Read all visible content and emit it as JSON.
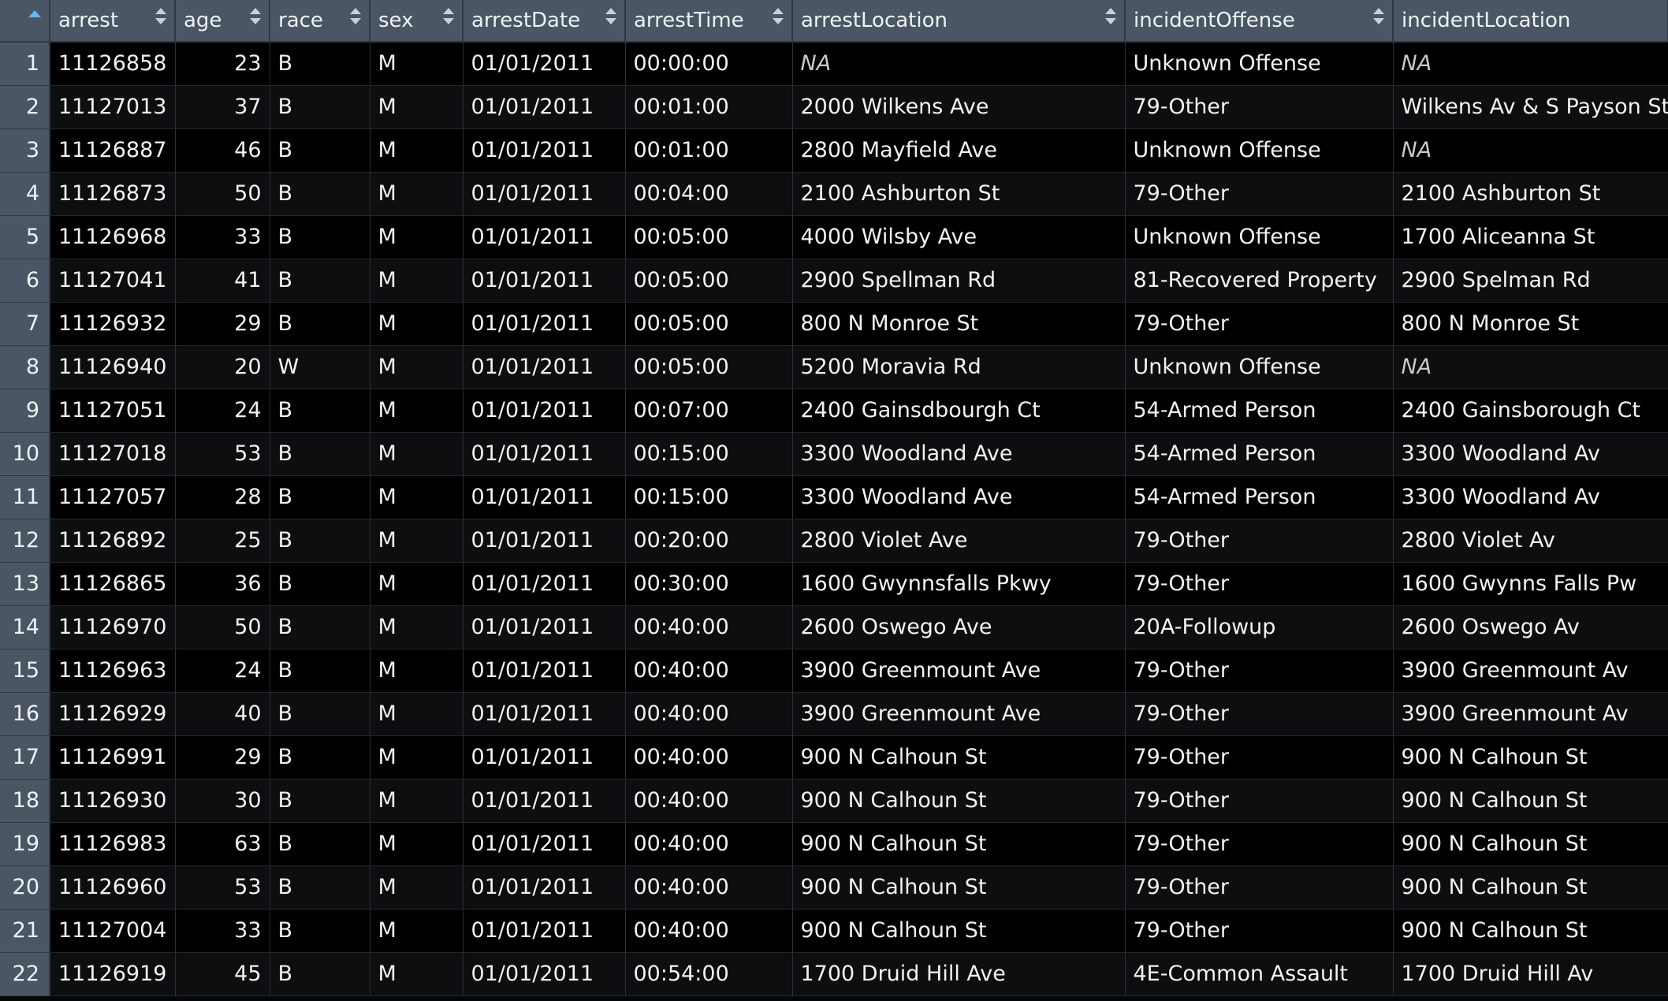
{
  "columns": [
    {
      "key": "arrest",
      "label": "arrest"
    },
    {
      "key": "age",
      "label": "age"
    },
    {
      "key": "race",
      "label": "race"
    },
    {
      "key": "sex",
      "label": "sex"
    },
    {
      "key": "arrestDate",
      "label": "arrestDate"
    },
    {
      "key": "arrestTime",
      "label": "arrestTime"
    },
    {
      "key": "arrestLocation",
      "label": "arrestLocation"
    },
    {
      "key": "incidentOffense",
      "label": "incidentOffense"
    },
    {
      "key": "incidentLocation",
      "label": "incidentLocation"
    }
  ],
  "rows": [
    {
      "n": "1",
      "arrest": "11126858",
      "age": "23",
      "race": "B",
      "sex": "M",
      "arrestDate": "01/01/2011",
      "arrestTime": "00:00:00",
      "arrestLocation": "NA",
      "incidentOffense": "Unknown Offense",
      "incidentLocation": "NA"
    },
    {
      "n": "2",
      "arrest": "11127013",
      "age": "37",
      "race": "B",
      "sex": "M",
      "arrestDate": "01/01/2011",
      "arrestTime": "00:01:00",
      "arrestLocation": "2000 Wilkens Ave",
      "incidentOffense": "79-Other",
      "incidentLocation": "Wilkens Av & S Payson St"
    },
    {
      "n": "3",
      "arrest": "11126887",
      "age": "46",
      "race": "B",
      "sex": "M",
      "arrestDate": "01/01/2011",
      "arrestTime": "00:01:00",
      "arrestLocation": "2800 Mayfield Ave",
      "incidentOffense": "Unknown Offense",
      "incidentLocation": "NA"
    },
    {
      "n": "4",
      "arrest": "11126873",
      "age": "50",
      "race": "B",
      "sex": "M",
      "arrestDate": "01/01/2011",
      "arrestTime": "00:04:00",
      "arrestLocation": "2100 Ashburton St",
      "incidentOffense": "79-Other",
      "incidentLocation": "2100 Ashburton St"
    },
    {
      "n": "5",
      "arrest": "11126968",
      "age": "33",
      "race": "B",
      "sex": "M",
      "arrestDate": "01/01/2011",
      "arrestTime": "00:05:00",
      "arrestLocation": "4000 Wilsby Ave",
      "incidentOffense": "Unknown Offense",
      "incidentLocation": "1700 Aliceanna St"
    },
    {
      "n": "6",
      "arrest": "11127041",
      "age": "41",
      "race": "B",
      "sex": "M",
      "arrestDate": "01/01/2011",
      "arrestTime": "00:05:00",
      "arrestLocation": "2900 Spellman Rd",
      "incidentOffense": "81-Recovered Property",
      "incidentLocation": "2900 Spelman Rd"
    },
    {
      "n": "7",
      "arrest": "11126932",
      "age": "29",
      "race": "B",
      "sex": "M",
      "arrestDate": "01/01/2011",
      "arrestTime": "00:05:00",
      "arrestLocation": "800 N Monroe St",
      "incidentOffense": "79-Other",
      "incidentLocation": "800 N Monroe St"
    },
    {
      "n": "8",
      "arrest": "11126940",
      "age": "20",
      "race": "W",
      "sex": "M",
      "arrestDate": "01/01/2011",
      "arrestTime": "00:05:00",
      "arrestLocation": "5200 Moravia Rd",
      "incidentOffense": "Unknown Offense",
      "incidentLocation": "NA"
    },
    {
      "n": "9",
      "arrest": "11127051",
      "age": "24",
      "race": "B",
      "sex": "M",
      "arrestDate": "01/01/2011",
      "arrestTime": "00:07:00",
      "arrestLocation": "2400 Gainsdbourgh Ct",
      "incidentOffense": "54-Armed Person",
      "incidentLocation": "2400 Gainsborough Ct"
    },
    {
      "n": "10",
      "arrest": "11127018",
      "age": "53",
      "race": "B",
      "sex": "M",
      "arrestDate": "01/01/2011",
      "arrestTime": "00:15:00",
      "arrestLocation": "3300 Woodland Ave",
      "incidentOffense": "54-Armed Person",
      "incidentLocation": "3300 Woodland Av"
    },
    {
      "n": "11",
      "arrest": "11127057",
      "age": "28",
      "race": "B",
      "sex": "M",
      "arrestDate": "01/01/2011",
      "arrestTime": "00:15:00",
      "arrestLocation": "3300 Woodland Ave",
      "incidentOffense": "54-Armed Person",
      "incidentLocation": "3300 Woodland Av"
    },
    {
      "n": "12",
      "arrest": "11126892",
      "age": "25",
      "race": "B",
      "sex": "M",
      "arrestDate": "01/01/2011",
      "arrestTime": "00:20:00",
      "arrestLocation": "2800 Violet Ave",
      "incidentOffense": "79-Other",
      "incidentLocation": "2800 Violet Av"
    },
    {
      "n": "13",
      "arrest": "11126865",
      "age": "36",
      "race": "B",
      "sex": "M",
      "arrestDate": "01/01/2011",
      "arrestTime": "00:30:00",
      "arrestLocation": "1600 Gwynnsfalls Pkwy",
      "incidentOffense": "79-Other",
      "incidentLocation": "1600 Gwynns Falls Pw"
    },
    {
      "n": "14",
      "arrest": "11126970",
      "age": "50",
      "race": "B",
      "sex": "M",
      "arrestDate": "01/01/2011",
      "arrestTime": "00:40:00",
      "arrestLocation": "2600 Oswego Ave",
      "incidentOffense": "20A-Followup",
      "incidentLocation": "2600 Oswego Av"
    },
    {
      "n": "15",
      "arrest": "11126963",
      "age": "24",
      "race": "B",
      "sex": "M",
      "arrestDate": "01/01/2011",
      "arrestTime": "00:40:00",
      "arrestLocation": "3900 Greenmount Ave",
      "incidentOffense": "79-Other",
      "incidentLocation": "3900 Greenmount Av"
    },
    {
      "n": "16",
      "arrest": "11126929",
      "age": "40",
      "race": "B",
      "sex": "M",
      "arrestDate": "01/01/2011",
      "arrestTime": "00:40:00",
      "arrestLocation": "3900 Greenmount Ave",
      "incidentOffense": "79-Other",
      "incidentLocation": "3900 Greenmount Av"
    },
    {
      "n": "17",
      "arrest": "11126991",
      "age": "29",
      "race": "B",
      "sex": "M",
      "arrestDate": "01/01/2011",
      "arrestTime": "00:40:00",
      "arrestLocation": "900 N Calhoun St",
      "incidentOffense": "79-Other",
      "incidentLocation": "900 N Calhoun St"
    },
    {
      "n": "18",
      "arrest": "11126930",
      "age": "30",
      "race": "B",
      "sex": "M",
      "arrestDate": "01/01/2011",
      "arrestTime": "00:40:00",
      "arrestLocation": "900 N Calhoun St",
      "incidentOffense": "79-Other",
      "incidentLocation": "900 N Calhoun St"
    },
    {
      "n": "19",
      "arrest": "11126983",
      "age": "63",
      "race": "B",
      "sex": "M",
      "arrestDate": "01/01/2011",
      "arrestTime": "00:40:00",
      "arrestLocation": "900 N Calhoun St",
      "incidentOffense": "79-Other",
      "incidentLocation": "900 N Calhoun St"
    },
    {
      "n": "20",
      "arrest": "11126960",
      "age": "53",
      "race": "B",
      "sex": "M",
      "arrestDate": "01/01/2011",
      "arrestTime": "00:40:00",
      "arrestLocation": "900 N Calhoun St",
      "incidentOffense": "79-Other",
      "incidentLocation": "900 N Calhoun St"
    },
    {
      "n": "21",
      "arrest": "11127004",
      "age": "33",
      "race": "B",
      "sex": "M",
      "arrestDate": "01/01/2011",
      "arrestTime": "00:40:00",
      "arrestLocation": "900 N Calhoun St",
      "incidentOffense": "79-Other",
      "incidentLocation": "900 N Calhoun St"
    },
    {
      "n": "22",
      "arrest": "11126919",
      "age": "45",
      "race": "B",
      "sex": "M",
      "arrestDate": "01/01/2011",
      "arrestTime": "00:54:00",
      "arrestLocation": "1700 Druid Hill Ave",
      "incidentOffense": "4E-Common Assault",
      "incidentLocation": "1700 Druid Hill Av"
    }
  ],
  "theme": {
    "header_bg": "#4a5663",
    "body_bg": "#000000",
    "sort_accent": "#62b6f2"
  },
  "icons": {
    "corner": "sort-ascending-icon",
    "column_sort": "sort-both-icon"
  }
}
